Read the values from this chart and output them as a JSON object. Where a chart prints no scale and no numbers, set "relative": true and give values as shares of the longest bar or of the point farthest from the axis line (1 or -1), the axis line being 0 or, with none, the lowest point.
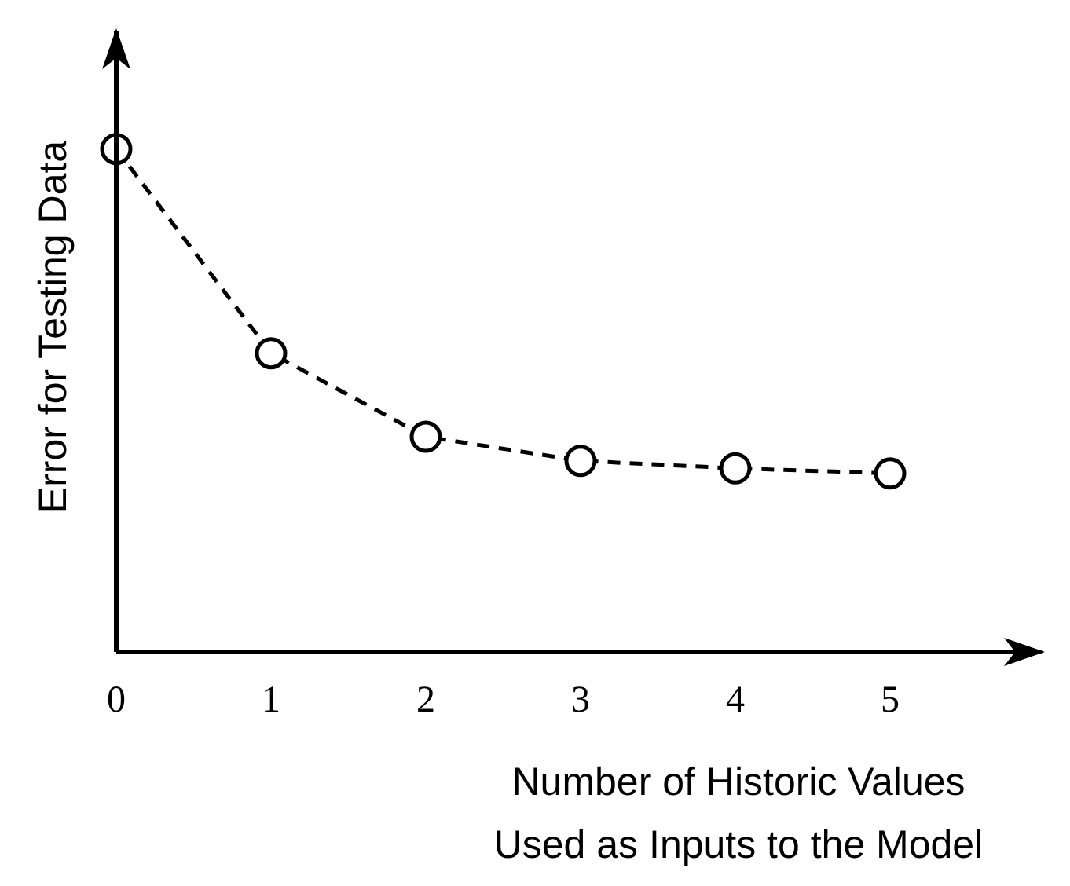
{
  "chart_data": {
    "type": "line",
    "xlabel": "Number of Historic Values\nUsed as Inputs to the Model",
    "ylabel": "Error for Testing Data",
    "relative": true,
    "x": [
      0,
      1,
      2,
      3,
      4,
      5
    ],
    "xlim": [
      0,
      6
    ],
    "xticks": [
      0,
      1,
      2,
      3,
      4,
      5
    ],
    "series": [
      {
        "color": "#000000",
        "values": [
          1,
          0.594,
          0.428,
          0.38,
          0.365,
          0.355
        ]
      }
    ],
    "marker": "circle",
    "line_style": "dashed"
  }
}
